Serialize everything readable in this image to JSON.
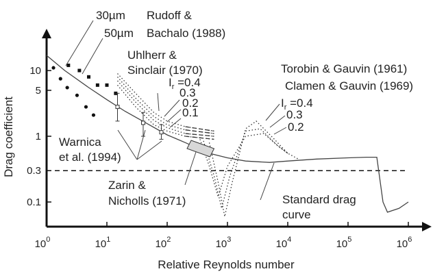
{
  "chart_data": {
    "type": "line",
    "xlabel": "Relative Reynolds number",
    "ylabel": "Drag coefficient",
    "xscale": "log",
    "yscale": "log",
    "xlim": [
      1,
      1000000
    ],
    "ylim": [
      0.03,
      40
    ],
    "grid": false,
    "x_ticks": [
      {
        "value": 1,
        "base": "10",
        "exp": "0"
      },
      {
        "value": 10,
        "base": "10",
        "exp": "1"
      },
      {
        "value": 100,
        "base": "10",
        "exp": "2"
      },
      {
        "value": 1000,
        "base": "10",
        "exp": "3"
      },
      {
        "value": 10000,
        "base": "10",
        "exp": "4"
      },
      {
        "value": 100000,
        "base": "10",
        "exp": "5"
      },
      {
        "value": 1000000,
        "base": "10",
        "exp": "6"
      }
    ],
    "y_ticks": [
      {
        "value": 10,
        "label": "10"
      },
      {
        "value": 5,
        "label": "5"
      },
      {
        "value": 1,
        "label": "1"
      },
      {
        "value": 0.3,
        "label": "0.3"
      },
      {
        "value": 0.1,
        "label": "0.1"
      }
    ],
    "standard_curve": {
      "points": [
        [
          1,
          17
        ],
        [
          2,
          10
        ],
        [
          5,
          5.5
        ],
        [
          10,
          3.6
        ],
        [
          20,
          2.4
        ],
        [
          50,
          1.5
        ],
        [
          100,
          1.05
        ],
        [
          200,
          0.8
        ],
        [
          500,
          0.55
        ],
        [
          1000,
          0.47
        ],
        [
          2000,
          0.42
        ],
        [
          5000,
          0.4
        ],
        [
          10000,
          0.42
        ],
        [
          30000,
          0.45
        ],
        [
          100000,
          0.47
        ],
        [
          200000,
          0.48
        ],
        [
          300000,
          0.48
        ],
        [
          380000,
          0.1
        ],
        [
          450000,
          0.07
        ],
        [
          700000,
          0.08
        ],
        [
          1000000,
          0.1
        ]
      ]
    },
    "reference_line": {
      "y": 0.3,
      "style": "dashed"
    },
    "warnica_squares": [
      [
        2.3,
        12
      ],
      [
        3.5,
        10
      ],
      [
        5,
        8
      ],
      [
        7,
        6
      ],
      [
        10,
        6
      ],
      [
        14,
        4.5
      ]
    ],
    "warnica_circles": [
      [
        1.3,
        11
      ],
      [
        1.7,
        7.5
      ],
      [
        2.2,
        5.5
      ],
      [
        3.2,
        4.2
      ],
      [
        4.5,
        2.8
      ],
      [
        6,
        2.1
      ]
    ],
    "zarin_error_bars": [
      {
        "x": 15,
        "y": 2.8,
        "low": 1.7,
        "high": 4.5
      },
      {
        "x": 40,
        "y": 1.6,
        "low": 1.0,
        "high": 2.3
      },
      {
        "x": 80,
        "y": 1.15,
        "low": 0.9,
        "high": 1.5
      }
    ],
    "uhlherr_curves": [
      {
        "label": "Ir =0.4",
        "points": [
          [
            15,
            9
          ],
          [
            30,
            4.5
          ],
          [
            60,
            2.3
          ],
          [
            100,
            1.7
          ],
          [
            200,
            1.4
          ],
          [
            600,
            1.2
          ]
        ]
      },
      {
        "label": "0.3",
        "points": [
          [
            15,
            8
          ],
          [
            30,
            3.8
          ],
          [
            60,
            2
          ],
          [
            100,
            1.5
          ],
          [
            200,
            1.25
          ],
          [
            600,
            1.1
          ]
        ]
      },
      {
        "label": "0.2",
        "points": [
          [
            15,
            7
          ],
          [
            30,
            3.3
          ],
          [
            60,
            1.75
          ],
          [
            100,
            1.35
          ],
          [
            200,
            1.1
          ],
          [
            600,
            1.0
          ]
        ]
      },
      {
        "label": "0.1",
        "points": [
          [
            15,
            6
          ],
          [
            30,
            2.8
          ],
          [
            60,
            1.5
          ],
          [
            100,
            1.2
          ],
          [
            200,
            1.0
          ],
          [
            600,
            0.9
          ]
        ]
      }
    ],
    "torobin_curves": [
      {
        "label": "Ir =0.4",
        "points": [
          [
            500,
            0.8
          ],
          [
            700,
            0.2
          ],
          [
            900,
            0.06
          ],
          [
            1200,
            0.2
          ],
          [
            2000,
            1.3
          ],
          [
            3000,
            1.7
          ],
          [
            6000,
            0.9
          ],
          [
            10000,
            0.55
          ],
          [
            15000,
            0.45
          ]
        ]
      },
      {
        "label": "0.3",
        "points": [
          [
            400,
            0.85
          ],
          [
            600,
            0.25
          ],
          [
            800,
            0.08
          ],
          [
            1100,
            0.25
          ],
          [
            2000,
            1.2
          ],
          [
            3500,
            1.3
          ],
          [
            6500,
            0.75
          ],
          [
            10000,
            0.55
          ]
        ]
      },
      {
        "label": "0.2",
        "points": [
          [
            350,
            0.9
          ],
          [
            500,
            0.35
          ],
          [
            700,
            0.12
          ],
          [
            1000,
            0.35
          ],
          [
            2000,
            1.0
          ],
          [
            4000,
            1.1
          ],
          [
            7000,
            0.7
          ],
          [
            10000,
            0.55
          ]
        ]
      }
    ],
    "rudoff_box": {
      "x_from": 250,
      "x_to": 600,
      "y_center": 0.75
    },
    "annotations": [
      {
        "text": "30µm"
      },
      {
        "text": "50µm"
      },
      {
        "text": "Rudoff &"
      },
      {
        "text": "Bachalo (1988)"
      },
      {
        "text": "Uhlherr &"
      },
      {
        "text": "Sinclair (1970)"
      },
      {
        "text": "Torobin & Gauvin (1961)"
      },
      {
        "text": "Clamen & Gauvin (1969)"
      },
      {
        "text": "Warnica"
      },
      {
        "text": "et al. (1994)"
      },
      {
        "text": "Zarin &"
      },
      {
        "text": "Nicholls (1971)"
      },
      {
        "text": "Standard drag"
      },
      {
        "text": "curve"
      }
    ],
    "curve_labels_left": [
      {
        "prefix": "I",
        "sub": "r",
        "suffix": " =0.4"
      },
      {
        "text": "0.3"
      },
      {
        "text": "0.2"
      },
      {
        "text": "0.1"
      }
    ],
    "curve_labels_right": [
      {
        "prefix": "I",
        "sub": "r",
        "suffix": " =0.4"
      },
      {
        "text": "0.3"
      },
      {
        "text": "0.2"
      }
    ]
  }
}
